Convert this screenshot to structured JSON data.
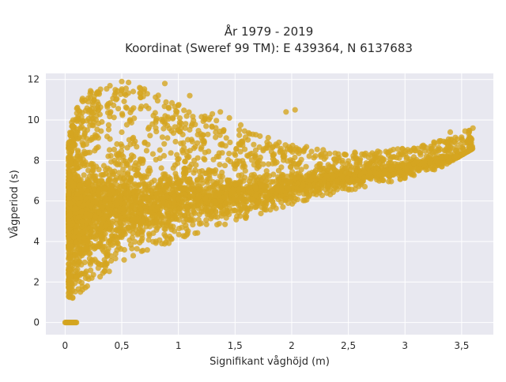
{
  "chart_data": {
    "type": "scatter",
    "title_line1": "År 1979 - 2019",
    "title_line2": "Koordinat (Sweref 99 TM): E 439364, N 6137683",
    "xlabel": "Signifikant våghöjd (m)",
    "ylabel": "Vågperiod (s)",
    "xlim": [
      -0.17,
      3.78
    ],
    "ylim": [
      -0.6,
      12.3
    ],
    "x_ticks": [
      0,
      0.5,
      1,
      1.5,
      2,
      2.5,
      3,
      3.5
    ],
    "x_tick_labels": [
      "0",
      "0,5",
      "1",
      "1,5",
      "2",
      "2,5",
      "3",
      "3,5"
    ],
    "y_ticks": [
      0,
      2,
      4,
      6,
      8,
      10,
      12
    ],
    "y_tick_labels": [
      "0",
      "2",
      "4",
      "6",
      "8",
      "10",
      "12"
    ],
    "grid": true,
    "legend": "none",
    "colors": {
      "point": "#d4a520",
      "plot_background": "#e8e8f0",
      "grid": "#ffffff"
    },
    "series": [
      {
        "envelope": {
          "x": [
            0.03,
            0.05,
            0.1,
            0.2,
            0.3,
            0.5,
            0.7,
            1.0,
            1.5,
            2.0,
            2.5,
            3.0,
            3.3,
            3.6
          ],
          "y_low": [
            1.2,
            1.1,
            1.3,
            1.8,
            2.2,
            2.9,
            3.4,
            4.1,
            5.0,
            5.8,
            6.5,
            7.1,
            7.6,
            8.6
          ],
          "y_high": [
            8.8,
            9.8,
            10.8,
            11.4,
            11.6,
            11.8,
            11.6,
            10.8,
            9.6,
            8.8,
            8.4,
            8.6,
            9.0,
            9.6
          ]
        },
        "zero_points": {
          "x_range": [
            0.0,
            0.1
          ],
          "y": 0
        },
        "outliers": [
          {
            "x": 0.5,
            "y": 11.9
          },
          {
            "x": 0.56,
            "y": 11.85
          },
          {
            "x": 0.88,
            "y": 11.8
          },
          {
            "x": 1.1,
            "y": 11.2
          },
          {
            "x": 1.3,
            "y": 10.3
          },
          {
            "x": 1.37,
            "y": 10.4
          },
          {
            "x": 1.45,
            "y": 10.1
          },
          {
            "x": 1.55,
            "y": 9.75
          },
          {
            "x": 1.95,
            "y": 10.4
          },
          {
            "x": 2.03,
            "y": 10.5
          },
          {
            "x": 1.72,
            "y": 9.2
          },
          {
            "x": 3.4,
            "y": 9.4
          },
          {
            "x": 3.53,
            "y": 9.45
          },
          {
            "x": 3.6,
            "y": 9.6
          },
          {
            "x": 3.58,
            "y": 8.95
          },
          {
            "x": 3.3,
            "y": 8.9
          },
          {
            "x": 3.15,
            "y": 8.7
          }
        ],
        "ridge": {
          "x": [
            0.0,
            0.5,
            1.0,
            1.5,
            2.0,
            2.5,
            3.0,
            3.5
          ],
          "y": [
            5.5,
            5.7,
            6.0,
            6.3,
            6.7,
            7.2,
            7.6,
            8.2
          ]
        }
      }
    ]
  }
}
